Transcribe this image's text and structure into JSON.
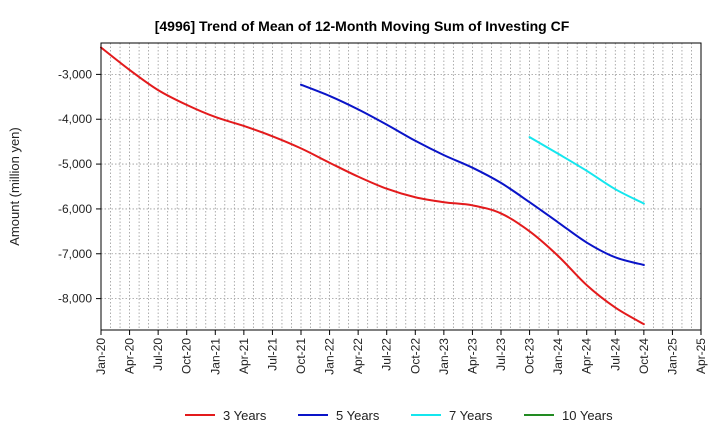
{
  "chart_data": {
    "type": "line",
    "title": "[4996]  Trend of Mean of 12-Month Moving Sum of Investing CF",
    "xlabel": "",
    "ylabel": "Amount (million yen)",
    "ylim": [
      -8700,
      -2300
    ],
    "yticks": [
      -3000,
      -4000,
      -5000,
      -6000,
      -7000,
      -8000
    ],
    "ytick_labels": [
      "-3,000",
      "-4,000",
      "-5,000",
      "-6,000",
      "-7,000",
      "-8,000"
    ],
    "x_start": "Jan-20",
    "x_end": "Apr-25",
    "xtick_labels": [
      "Jan-20",
      "Apr-20",
      "Jul-20",
      "Oct-20",
      "Jan-21",
      "Apr-21",
      "Jul-21",
      "Oct-21",
      "Jan-22",
      "Apr-22",
      "Jul-22",
      "Oct-22",
      "Jan-23",
      "Apr-23",
      "Jul-23",
      "Oct-23",
      "Jan-24",
      "Apr-24",
      "Jul-24",
      "Oct-24",
      "Jan-25",
      "Apr-25"
    ],
    "grid": true,
    "legend_position": "bottom",
    "series": [
      {
        "name": "3 Years",
        "color": "#e31a1c",
        "points": [
          {
            "month": 0,
            "value": -2400
          },
          {
            "month": 3,
            "value": -2900
          },
          {
            "month": 6,
            "value": -3350
          },
          {
            "month": 9,
            "value": -3680
          },
          {
            "month": 12,
            "value": -3950
          },
          {
            "month": 15,
            "value": -4150
          },
          {
            "month": 18,
            "value": -4380
          },
          {
            "month": 21,
            "value": -4650
          },
          {
            "month": 24,
            "value": -4970
          },
          {
            "month": 27,
            "value": -5280
          },
          {
            "month": 30,
            "value": -5550
          },
          {
            "month": 33,
            "value": -5740
          },
          {
            "month": 36,
            "value": -5850
          },
          {
            "month": 39,
            "value": -5920
          },
          {
            "month": 42,
            "value": -6100
          },
          {
            "month": 45,
            "value": -6500
          },
          {
            "month": 48,
            "value": -7050
          },
          {
            "month": 51,
            "value": -7700
          },
          {
            "month": 54,
            "value": -8200
          },
          {
            "month": 57,
            "value": -8570
          }
        ]
      },
      {
        "name": "5 Years",
        "color": "#0a14c8",
        "points": [
          {
            "month": 21,
            "value": -3230
          },
          {
            "month": 24,
            "value": -3480
          },
          {
            "month": 27,
            "value": -3780
          },
          {
            "month": 30,
            "value": -4120
          },
          {
            "month": 33,
            "value": -4480
          },
          {
            "month": 36,
            "value": -4800
          },
          {
            "month": 39,
            "value": -5080
          },
          {
            "month": 42,
            "value": -5420
          },
          {
            "month": 45,
            "value": -5850
          },
          {
            "month": 48,
            "value": -6300
          },
          {
            "month": 51,
            "value": -6750
          },
          {
            "month": 54,
            "value": -7080
          },
          {
            "month": 57,
            "value": -7250
          }
        ]
      },
      {
        "name": "7 Years",
        "color": "#14e6ee",
        "points": [
          {
            "month": 45,
            "value": -4400
          },
          {
            "month": 48,
            "value": -4770
          },
          {
            "month": 51,
            "value": -5150
          },
          {
            "month": 54,
            "value": -5560
          },
          {
            "month": 57,
            "value": -5880
          }
        ]
      },
      {
        "name": "10 Years",
        "color": "#228b22",
        "points": []
      }
    ]
  }
}
